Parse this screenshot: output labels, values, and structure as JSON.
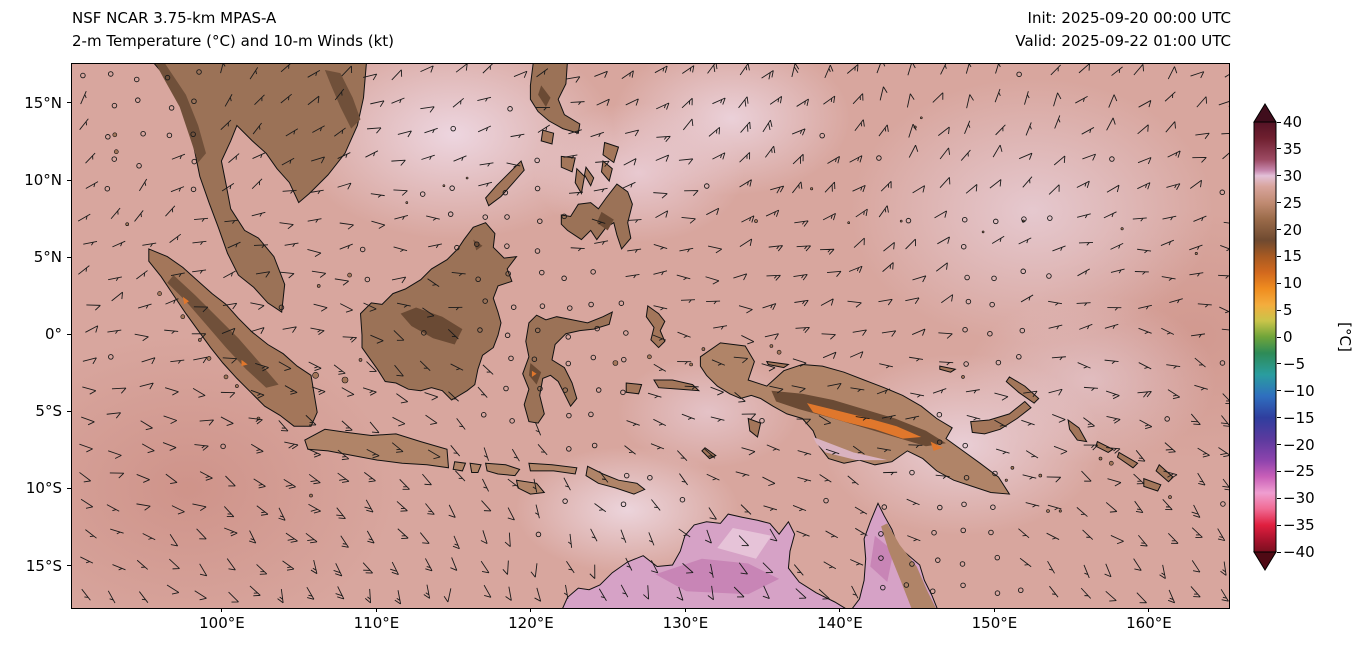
{
  "header": {
    "title_line1": "NSF NCAR 3.75-km MPAS-A",
    "title_line2": "2-m Temperature (°C) and 10-m Winds (kt)",
    "init_label": "Init: 2025-09-20 00:00 UTC",
    "valid_label": "Valid: 2025-09-22 01:00 UTC"
  },
  "axes": {
    "y_ticks": [
      {
        "label": "15°N",
        "lat": 15
      },
      {
        "label": "10°N",
        "lat": 10
      },
      {
        "label": "5°N",
        "lat": 5
      },
      {
        "label": "0°",
        "lat": 0
      },
      {
        "label": "5°S",
        "lat": -5
      },
      {
        "label": "10°S",
        "lat": -10
      },
      {
        "label": "15°S",
        "lat": -15
      }
    ],
    "x_ticks": [
      {
        "label": "100°E",
        "lon": 100
      },
      {
        "label": "110°E",
        "lon": 110
      },
      {
        "label": "120°E",
        "lon": 120
      },
      {
        "label": "130°E",
        "lon": 130
      },
      {
        "label": "140°E",
        "lon": 140
      },
      {
        "label": "150°E",
        "lon": 150
      },
      {
        "label": "160°E",
        "lon": 160
      }
    ]
  },
  "colorbar": {
    "unit_label": "[°C]",
    "ticks": [
      40,
      35,
      30,
      25,
      20,
      15,
      10,
      5,
      0,
      -5,
      -10,
      -15,
      -20,
      -25,
      -30,
      -35,
      -40
    ],
    "over_color": "#3f0d1c",
    "under_color": "#4f0a14",
    "stops": [
      {
        "v": 40,
        "c": "#541325"
      },
      {
        "v": 37,
        "c": "#6f1f2f"
      },
      {
        "v": 33,
        "c": "#9c4a63"
      },
      {
        "v": 31,
        "c": "#c687ad"
      },
      {
        "v": 30,
        "c": "#e3c1d8"
      },
      {
        "v": 28,
        "c": "#d8a49c"
      },
      {
        "v": 25,
        "c": "#c08b72"
      },
      {
        "v": 22,
        "c": "#9b6b4a"
      },
      {
        "v": 18,
        "c": "#6f4a30"
      },
      {
        "v": 15,
        "c": "#a85a22"
      },
      {
        "v": 12,
        "c": "#d2691e"
      },
      {
        "v": 9,
        "c": "#ef8c1f"
      },
      {
        "v": 6,
        "c": "#f4ad3d"
      },
      {
        "v": 3,
        "c": "#c9c44a"
      },
      {
        "v": 0,
        "c": "#6fa43a"
      },
      {
        "v": -3,
        "c": "#2e8b57"
      },
      {
        "v": -7,
        "c": "#2a9d9f"
      },
      {
        "v": -11,
        "c": "#2f6fbf"
      },
      {
        "v": -15,
        "c": "#2f3e9e"
      },
      {
        "v": -19,
        "c": "#5b3a9e"
      },
      {
        "v": -23,
        "c": "#8e44ad"
      },
      {
        "v": -26,
        "c": "#c95fb8"
      },
      {
        "v": -29,
        "c": "#ef9ed0"
      },
      {
        "v": -32,
        "c": "#f06a93"
      },
      {
        "v": -35,
        "c": "#e01f3f"
      },
      {
        "v": -38,
        "c": "#a3122b"
      },
      {
        "v": -40,
        "c": "#7a0f1f"
      }
    ]
  },
  "palette": {
    "ocean_base": "#d8a69e",
    "ocean_warm_pink": "#ecd5df",
    "ocean_cool": "#cb8a80",
    "land_base": "#9b7257",
    "land_mid": "#a3765a",
    "land_light": "#b08468",
    "land_dark": "#6a4a34",
    "land_darker": "#70503a",
    "land_orange": "#e0772c",
    "australia_pink": "#d6a2c6",
    "australia_magenta": "#c885b6",
    "australia_lightpink": "#e6c3d8",
    "australia_tan": "#b08468",
    "png_lowland_pink": "#d9b2c0",
    "coastline": "#111111",
    "barb_color": "#1b1b1b"
  },
  "chart_data": {
    "type": "heatmap",
    "title": "NSF NCAR 3.75-km MPAS-A",
    "subtitle": "2-m Temperature (°C) and 10-m Winds (kt)",
    "init_time": "2025-09-20 00:00 UTC",
    "valid_time": "2025-09-22 01:00 UTC",
    "region": "Maritime Continent (Southeast Asia, Indonesia, New Guinea, northern Australia, western Pacific)",
    "x_axis": {
      "label": "longitude",
      "tick_labels": [
        "100°E",
        "110°E",
        "120°E",
        "130°E",
        "140°E",
        "150°E",
        "160°E"
      ],
      "range_deg_east": [
        90.2,
        165.1
      ]
    },
    "y_axis": {
      "label": "latitude",
      "tick_labels": [
        "15°N",
        "10°N",
        "5°N",
        "0°",
        "5°S",
        "10°S",
        "15°S"
      ],
      "range_deg_north": [
        -17.7,
        17.6
      ]
    },
    "colorbar": {
      "label": "[°C]",
      "tick_values": [
        40,
        35,
        30,
        25,
        20,
        15,
        10,
        5,
        0,
        -5,
        -10,
        -15,
        -20,
        -25,
        -30,
        -35,
        -40
      ],
      "range": [
        -40,
        40
      ],
      "extend": "both"
    },
    "grid": false,
    "legend_position": "right-colorbar",
    "temperature_field_c": [
      {
        "region": "open tropical ocean (most of domain)",
        "value": 28
      },
      {
        "region": "South China Sea and seas east of Philippines (pale pink patches)",
        "value": 30
      },
      {
        "region": "island lowlands and coasts (Sumatra, Borneo, Sulawesi, New Guinea)",
        "value": 24
      },
      {
        "region": "island highlands (Barisan range, Borneo interior, Indochina ranges)",
        "value": 17
      },
      {
        "region": "New Guinea highland spine (orange ridge)",
        "value": 12
      },
      {
        "region": "northern Australia interior late morning (pink/magenta)",
        "value": 33
      }
    ],
    "wind_field_kt": {
      "typical_speed": 10,
      "speed_range": [
        0,
        20
      ],
      "barb_convention": "half barb = 5 kt, full barb = 10 kt, open circle = calm",
      "calm_region": "equatorial western Pacific east of about 147°E (cluster of calm circles)"
    }
  }
}
